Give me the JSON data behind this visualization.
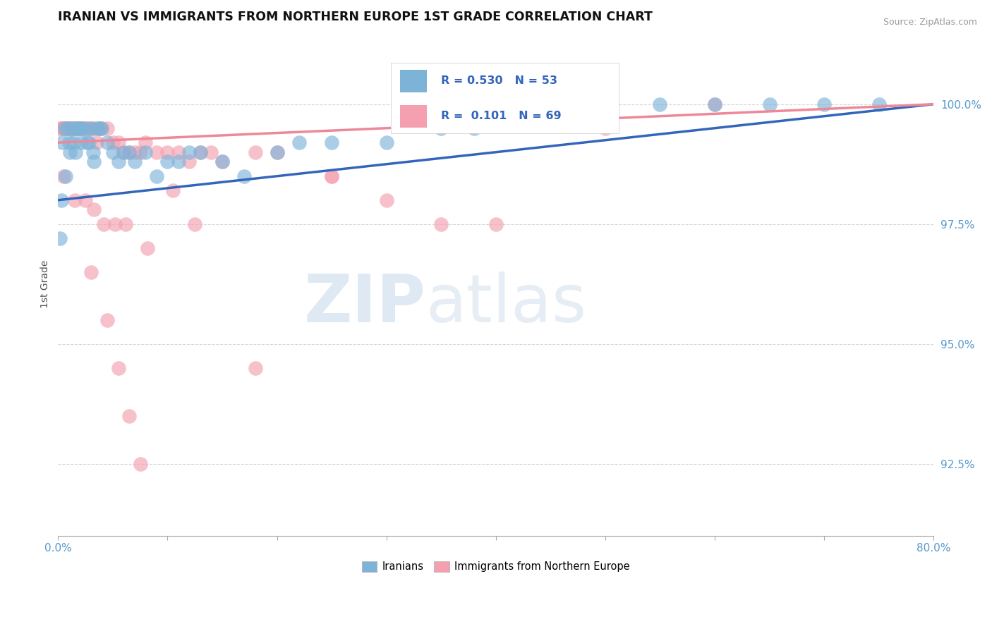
{
  "title": "IRANIAN VS IMMIGRANTS FROM NORTHERN EUROPE 1ST GRADE CORRELATION CHART",
  "source_text": "Source: ZipAtlas.com",
  "ylabel": "1st Grade",
  "xlim": [
    0.0,
    80.0
  ],
  "ylim": [
    91.0,
    101.5
  ],
  "xticks": [
    0.0,
    10.0,
    20.0,
    30.0,
    40.0,
    50.0,
    60.0,
    70.0,
    80.0
  ],
  "ytick_values": [
    92.5,
    95.0,
    97.5,
    100.0
  ],
  "ytick_labels": [
    "92.5%",
    "95.0%",
    "97.5%",
    "100.0%"
  ],
  "blue_R": 0.53,
  "blue_N": 53,
  "pink_R": 0.101,
  "pink_N": 69,
  "blue_color": "#7EB3D8",
  "pink_color": "#F4A0B0",
  "blue_line_color": "#3366BB",
  "pink_line_color": "#EE8899",
  "watermark_zip": "ZIP",
  "watermark_atlas": "atlas",
  "legend_label_blue": "Iranians",
  "legend_label_pink": "Immigrants from Northern Europe",
  "blue_scatter_x": [
    0.2,
    0.4,
    0.6,
    0.8,
    1.0,
    1.2,
    1.5,
    1.8,
    2.0,
    2.2,
    2.5,
    2.8,
    3.0,
    3.2,
    3.5,
    3.8,
    4.0,
    4.5,
    5.0,
    5.5,
    6.0,
    6.5,
    7.0,
    8.0,
    9.0,
    10.0,
    11.0,
    12.0,
    13.0,
    15.0,
    17.0,
    20.0,
    22.0,
    25.0,
    30.0,
    35.0,
    38.0,
    42.0,
    45.0,
    50.0,
    55.0,
    60.0,
    65.0,
    70.0,
    75.0,
    0.3,
    0.7,
    1.1,
    1.4,
    1.6,
    2.1,
    2.6,
    3.3
  ],
  "blue_scatter_y": [
    97.2,
    99.2,
    99.5,
    99.5,
    99.2,
    99.5,
    99.5,
    99.5,
    99.5,
    99.5,
    99.5,
    99.2,
    99.5,
    99.0,
    99.5,
    99.5,
    99.5,
    99.2,
    99.0,
    98.8,
    99.0,
    99.0,
    98.8,
    99.0,
    98.5,
    98.8,
    98.8,
    99.0,
    99.0,
    98.8,
    98.5,
    99.0,
    99.2,
    99.2,
    99.2,
    99.5,
    99.5,
    100.0,
    100.0,
    99.8,
    100.0,
    100.0,
    100.0,
    100.0,
    100.0,
    98.0,
    98.5,
    99.0,
    99.2,
    99.0,
    99.2,
    99.2,
    98.8
  ],
  "pink_scatter_x": [
    0.2,
    0.3,
    0.4,
    0.5,
    0.6,
    0.7,
    0.8,
    0.9,
    1.0,
    1.1,
    1.2,
    1.3,
    1.4,
    1.5,
    1.6,
    1.7,
    1.8,
    1.9,
    2.0,
    2.1,
    2.2,
    2.4,
    2.6,
    2.8,
    3.0,
    3.2,
    3.5,
    3.8,
    4.0,
    4.5,
    5.0,
    5.5,
    6.0,
    6.5,
    7.0,
    7.5,
    8.0,
    9.0,
    10.0,
    11.0,
    12.0,
    13.0,
    14.0,
    15.0,
    18.0,
    20.0,
    25.0,
    30.0,
    40.0,
    50.0,
    60.0,
    0.5,
    1.5,
    2.5,
    3.3,
    4.2,
    5.2,
    6.2,
    8.2,
    10.5,
    12.5,
    18.0,
    25.0,
    35.0,
    3.0,
    4.5,
    5.5,
    6.5,
    7.5
  ],
  "pink_scatter_y": [
    99.5,
    99.5,
    99.5,
    99.5,
    99.5,
    99.5,
    99.5,
    99.5,
    99.5,
    99.5,
    99.5,
    99.5,
    99.5,
    99.5,
    99.5,
    99.5,
    99.5,
    99.5,
    99.5,
    99.5,
    99.5,
    99.5,
    99.5,
    99.5,
    99.5,
    99.5,
    99.2,
    99.5,
    99.5,
    99.5,
    99.2,
    99.2,
    99.0,
    99.0,
    99.0,
    99.0,
    99.2,
    99.0,
    99.0,
    99.0,
    98.8,
    99.0,
    99.0,
    98.8,
    99.0,
    99.0,
    98.5,
    98.0,
    97.5,
    99.5,
    100.0,
    98.5,
    98.0,
    98.0,
    97.8,
    97.5,
    97.5,
    97.5,
    97.0,
    98.2,
    97.5,
    94.5,
    98.5,
    97.5,
    96.5,
    95.5,
    94.5,
    93.5,
    92.5
  ]
}
